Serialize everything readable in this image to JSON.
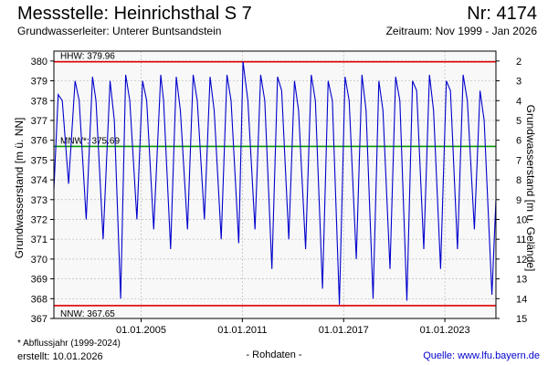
{
  "header": {
    "title": "Messstelle: Heinrichsthal S 7",
    "number": "Nr: 4174",
    "aquifer": "Grundwasserleiter:   Unterer Buntsandstein",
    "period": "Zeitraum: Nov 1999 - Jan 2026"
  },
  "footer": {
    "footnote": "* Abflussjahr (1999-2024)",
    "created": "erstellt:  10.01.2026",
    "raw": "- Rohdaten -",
    "source": "Quelle: www.lfu.bayern.de"
  },
  "colors": {
    "series": "#0000cc",
    "hhw_nnw": "#e00000",
    "mnw": "#009900",
    "grid": "#bbbbbb",
    "plot_bg": "#f8f8f8"
  },
  "chart_data": {
    "type": "line",
    "ylabel": "Grundwasserstand [m ü. NN]",
    "y2label": "Grundwasserstand [m u. Gelände]",
    "ylim": [
      367,
      380.5
    ],
    "yticks": [
      367,
      368,
      369,
      370,
      371,
      372,
      373,
      374,
      375,
      376,
      377,
      378,
      379,
      380
    ],
    "ytick_labels": [
      "367",
      "368",
      "369",
      "370",
      "371",
      "372",
      "373",
      "374",
      "375",
      "376",
      "377",
      "378",
      "379",
      "380"
    ],
    "y2ticks": [
      2,
      3,
      4,
      5,
      6,
      7,
      8,
      9,
      10,
      11,
      12,
      13,
      14,
      15
    ],
    "y2ticks_labels": [
      "2",
      "3",
      "4",
      "5",
      "6",
      "7",
      "8",
      "9",
      "10",
      "11",
      "12",
      "13",
      "14",
      "15"
    ],
    "xlim": [
      "1999-11-01",
      "2026-01-10"
    ],
    "xticks": [
      "2005-01-01",
      "2011-01-01",
      "2017-01-01",
      "2023-01-01"
    ],
    "xtick_labels": [
      "01.01.2005",
      "01.01.2011",
      "01.01.2017",
      "01.01.2023"
    ],
    "grid": true,
    "reference_lines": [
      {
        "label": "HHW: 379.96",
        "value": 379.96
      },
      {
        "label": "MNW*: 375.69",
        "value": 375.69
      },
      {
        "label": "NNW: 367.65",
        "value": 367.65
      }
    ],
    "series": [
      {
        "x": [
          "1999-11-01",
          "2000-02-01",
          "2000-05-01",
          "2000-09-15",
          "2001-02-01",
          "2001-05-01",
          "2001-10-01",
          "2002-02-15",
          "2002-05-01",
          "2002-10-01",
          "2003-03-01",
          "2003-06-01",
          "2003-10-15",
          "2004-02-01",
          "2004-05-01",
          "2004-10-01",
          "2005-02-01",
          "2005-05-01",
          "2005-10-01",
          "2006-03-01",
          "2006-05-01",
          "2006-10-01",
          "2007-02-01",
          "2007-05-01",
          "2007-10-01",
          "2008-02-01",
          "2008-05-01",
          "2008-10-01",
          "2009-02-01",
          "2009-05-01",
          "2009-10-01",
          "2010-02-01",
          "2010-05-01",
          "2010-10-15",
          "2011-01-15",
          "2011-05-01",
          "2011-10-01",
          "2012-02-01",
          "2012-05-01",
          "2012-10-01",
          "2013-02-01",
          "2013-05-01",
          "2013-10-01",
          "2014-02-01",
          "2014-05-01",
          "2014-10-01",
          "2015-02-01",
          "2015-05-01",
          "2015-10-01",
          "2016-02-01",
          "2016-05-01",
          "2016-10-01",
          "2017-02-01",
          "2017-05-01",
          "2017-10-01",
          "2018-02-01",
          "2018-05-01",
          "2018-10-01",
          "2019-02-01",
          "2019-05-01",
          "2019-10-01",
          "2020-02-01",
          "2020-05-01",
          "2020-10-01",
          "2021-02-01",
          "2021-05-01",
          "2021-10-01",
          "2022-02-01",
          "2022-05-01",
          "2022-10-01",
          "2023-02-01",
          "2023-05-01",
          "2023-10-01",
          "2024-02-01",
          "2024-05-01",
          "2024-10-01",
          "2025-02-01",
          "2025-05-01",
          "2025-10-15",
          "2026-01-10"
        ],
        "values": [
          373.5,
          378.3,
          378.0,
          373.8,
          379.0,
          378.0,
          372.0,
          379.2,
          378.0,
          371.0,
          379.0,
          377.0,
          368.0,
          379.3,
          378.0,
          372.0,
          379.0,
          378.0,
          371.5,
          379.3,
          378.0,
          370.5,
          379.2,
          377.5,
          371.5,
          379.3,
          378.0,
          372.0,
          379.2,
          377.5,
          371.0,
          379.3,
          378.0,
          370.8,
          379.96,
          378.0,
          371.5,
          379.3,
          378.0,
          369.5,
          379.2,
          378.5,
          371.0,
          379.0,
          377.5,
          370.5,
          379.3,
          378.0,
          368.5,
          379.0,
          378.0,
          367.7,
          379.2,
          378.0,
          370.0,
          379.3,
          377.5,
          368.0,
          379.0,
          377.5,
          369.5,
          379.2,
          378.0,
          367.9,
          379.0,
          378.5,
          370.5,
          379.3,
          377.5,
          369.5,
          379.0,
          378.5,
          370.5,
          379.3,
          378.0,
          371.5,
          378.5,
          377.0,
          368.2,
          373.0
        ]
      }
    ]
  }
}
